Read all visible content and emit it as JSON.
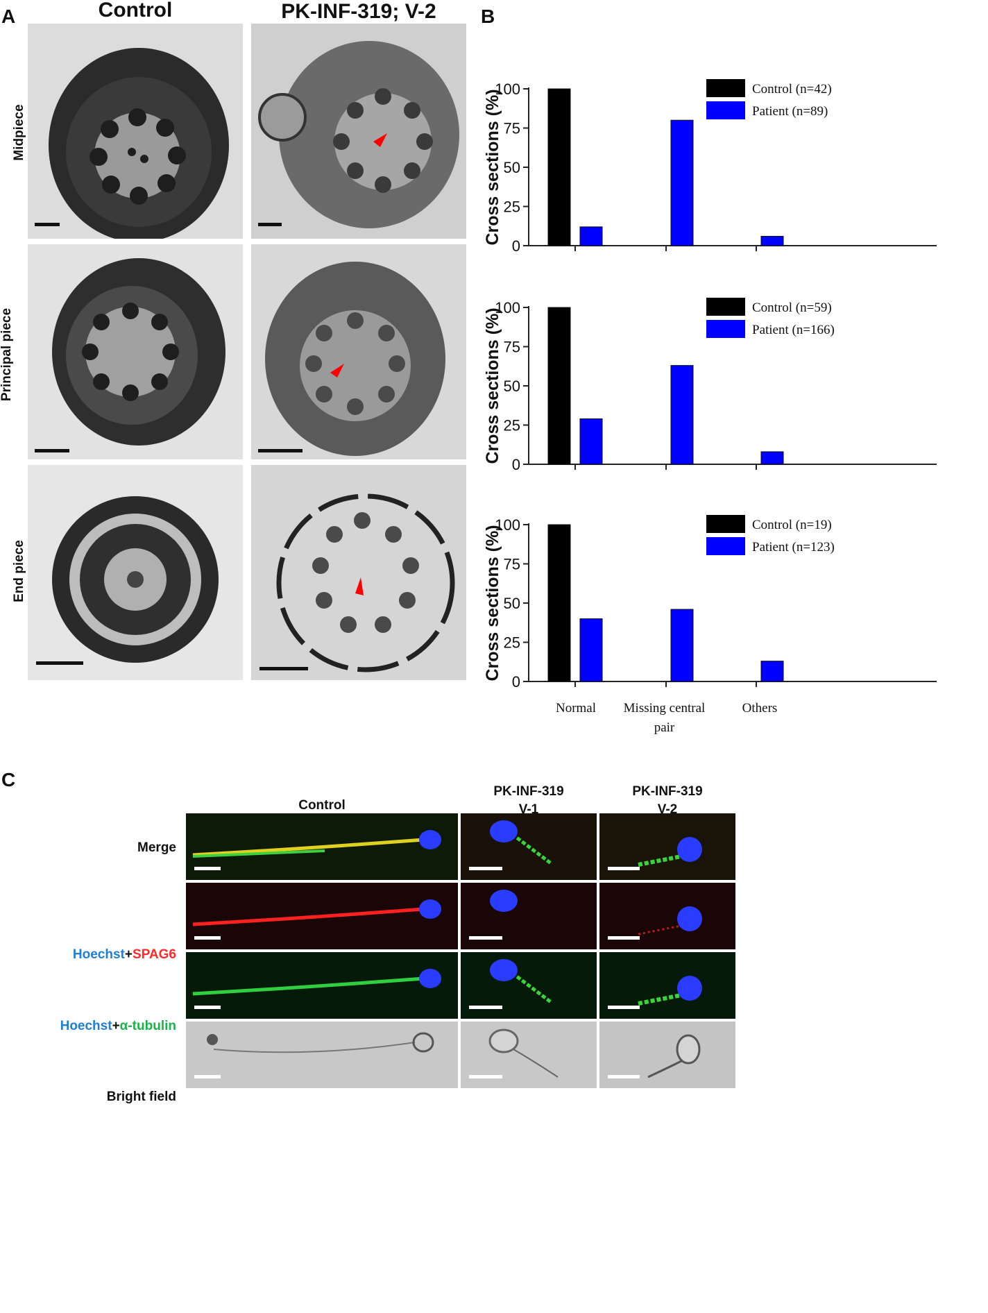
{
  "panel_a": {
    "letter": "A",
    "col_headers": [
      "Control",
      "PK-INF-319; V-2"
    ],
    "row_labels": [
      "Midpiece",
      "Principal piece",
      "End piece"
    ]
  },
  "panel_b": {
    "letter": "B",
    "categories_display": [
      "Normal",
      "Missing central pair",
      "Others"
    ]
  },
  "chart_data": [
    {
      "type": "bar",
      "categories": [
        "Normal",
        "Missing central pair",
        "Others"
      ],
      "ylabel": "Cross sections (%)",
      "ylim": [
        0,
        100
      ],
      "yticks": [
        0,
        25,
        50,
        75,
        100
      ],
      "legend_position": "top-right",
      "series": [
        {
          "name": "Control (n=42)",
          "color": "#000000",
          "values": [
            100,
            0,
            0
          ]
        },
        {
          "name": "Patient (n=89)",
          "color": "#0000ff",
          "values": [
            12,
            80,
            6
          ]
        }
      ]
    },
    {
      "type": "bar",
      "categories": [
        "Normal",
        "Missing central pair",
        "Others"
      ],
      "ylabel": "Cross sections (%)",
      "ylim": [
        0,
        100
      ],
      "yticks": [
        0,
        25,
        50,
        75,
        100
      ],
      "legend_position": "top-right",
      "series": [
        {
          "name": "Control (n=59)",
          "color": "#000000",
          "values": [
            100,
            0,
            0
          ]
        },
        {
          "name": "Patient (n=166)",
          "color": "#0000ff",
          "values": [
            29,
            63,
            8
          ]
        }
      ]
    },
    {
      "type": "bar",
      "categories": [
        "Normal",
        "Missing central pair",
        "Others"
      ],
      "ylabel": "Cross sections (%)",
      "ylim": [
        0,
        100
      ],
      "yticks": [
        0,
        25,
        50,
        75,
        100
      ],
      "legend_position": "top-right",
      "series": [
        {
          "name": "Control (n=19)",
          "color": "#000000",
          "values": [
            100,
            0,
            0
          ]
        },
        {
          "name": "Patient (n=123)",
          "color": "#0000ff",
          "values": [
            40,
            46,
            13
          ]
        }
      ]
    }
  ],
  "panel_c": {
    "letter": "C",
    "col_headers": [
      {
        "line1": "Control",
        "line2": ""
      },
      {
        "line1": "PK-INF-319",
        "line2": "V-1"
      },
      {
        "line1": "PK-INF-319",
        "line2": "V-2"
      }
    ],
    "row_merge": "Merge",
    "row2_hoechst": "Hoechst",
    "row2_plus": "+",
    "row2_marker": "SPAG6",
    "row3_hoechst": "Hoechst",
    "row3_plus": "+",
    "row3_marker": "α-tubulin",
    "row_bright": "Bright field",
    "colors": {
      "hoechst": "#1e7fd6",
      "spag6": "#ff2a2a",
      "tubulin": "#19b34a"
    }
  }
}
